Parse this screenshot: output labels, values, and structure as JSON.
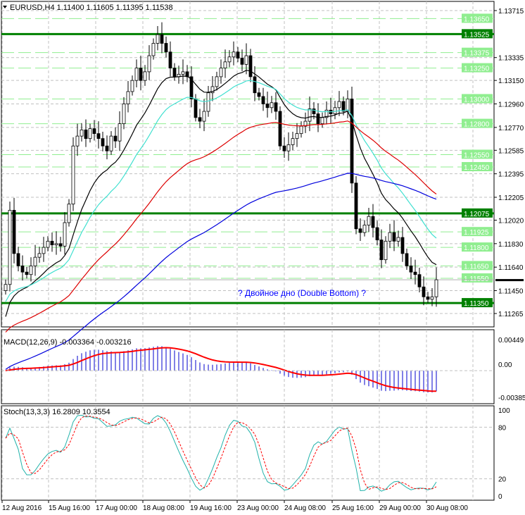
{
  "header": {
    "symbol": "EURUSD,H4",
    "open": "1.11400",
    "high": "1.11605",
    "low": "1.11395",
    "close": "1.11538"
  },
  "annotation": "? Двойное дно (Double Bottom) ?",
  "colors": {
    "strong_level": "#008000",
    "light_level": "#90ee90",
    "bull": "#ffffff",
    "bear": "#000000",
    "ma_black": "#000000",
    "ma_cyan": "#40e0d0",
    "ma_red": "#dd0000",
    "ma_blue": "#0000dd",
    "macd_hist": "#0000cc",
    "macd_signal": "#ff0000",
    "stoch_main": "#20b2aa",
    "stoch_signal": "#ff0000"
  },
  "price_axis": {
    "range": [
      1.1122,
      1.1376
    ],
    "ticks": [
      "1.13715",
      "1.13335",
      "1.13150",
      "1.12960",
      "1.12770",
      "1.12585",
      "1.12395",
      "1.12205",
      "1.12020",
      "1.11830",
      "1.11640",
      "1.11450",
      "1.11265"
    ],
    "strong_levels": [
      "1.13525",
      "1.12075",
      "1.11350"
    ],
    "light_levels": [
      "1.13650",
      "1.13375",
      "1.13250",
      "1.13000",
      "1.12800",
      "1.12550",
      "1.12450",
      "1.11925",
      "1.11800",
      "1.11650",
      "1.11550"
    ],
    "current_price": "1.11538"
  },
  "macd": {
    "label": "MACD(12,26,9) -0.003364 -0.003216",
    "ticks": [
      "0.00449",
      "0.00",
      "-0.00385"
    ],
    "range": [
      -0.00385,
      0.00449
    ]
  },
  "stoch": {
    "label": "Stoch(13,3,3) 16.2809 10.3554",
    "ticks": [
      "100",
      "80",
      "20",
      "0"
    ]
  },
  "time_axis": [
    "12 Aug 2016",
    "15 Aug 16:00",
    "17 Aug 00:00",
    "18 Aug 08:00",
    "19 Aug 16:00",
    "23 Aug 00:00",
    "24 Aug 08:00",
    "25 Aug 16:00",
    "29 Aug 00:00",
    "30 Aug 08:00"
  ],
  "chart_data": {
    "type": "candlestick",
    "closes": [
      1.115,
      1.121,
      1.1175,
      1.1165,
      1.116,
      1.1158,
      1.1165,
      1.1172,
      1.1175,
      1.118,
      1.1185,
      1.1182,
      1.1183,
      1.1181,
      1.12,
      1.1215,
      1.1262,
      1.127,
      1.1275,
      1.1268,
      1.1276,
      1.1272,
      1.1268,
      1.1262,
      1.1258,
      1.127,
      1.1266,
      1.128,
      1.1296,
      1.1306,
      1.1315,
      1.1325,
      1.1315,
      1.1322,
      1.1335,
      1.1345,
      1.1352,
      1.1345,
      1.1338,
      1.1325,
      1.1318,
      1.132,
      1.1322,
      1.1318,
      1.13,
      1.1285,
      1.1282,
      1.129,
      1.1305,
      1.131,
      1.1318,
      1.1325,
      1.133,
      1.1334,
      1.1338,
      1.1333,
      1.1328,
      1.1335,
      1.1318,
      1.1305,
      1.1302,
      1.1296,
      1.1293,
      1.1297,
      1.129,
      1.1262,
      1.1258,
      1.1263,
      1.1268,
      1.1272,
      1.1278,
      1.1282,
      1.1292,
      1.1288,
      1.128,
      1.1285,
      1.1291,
      1.1288,
      1.1293,
      1.1298,
      1.129,
      1.13,
      1.1232,
      1.1195,
      1.1192,
      1.1198,
      1.1205,
      1.1196,
      1.1186,
      1.117,
      1.1185,
      1.1192,
      1.1185,
      1.1188,
      1.1175,
      1.1165,
      1.116,
      1.1158,
      1.1148,
      1.114,
      1.1138,
      1.114,
      1.11538
    ]
  }
}
